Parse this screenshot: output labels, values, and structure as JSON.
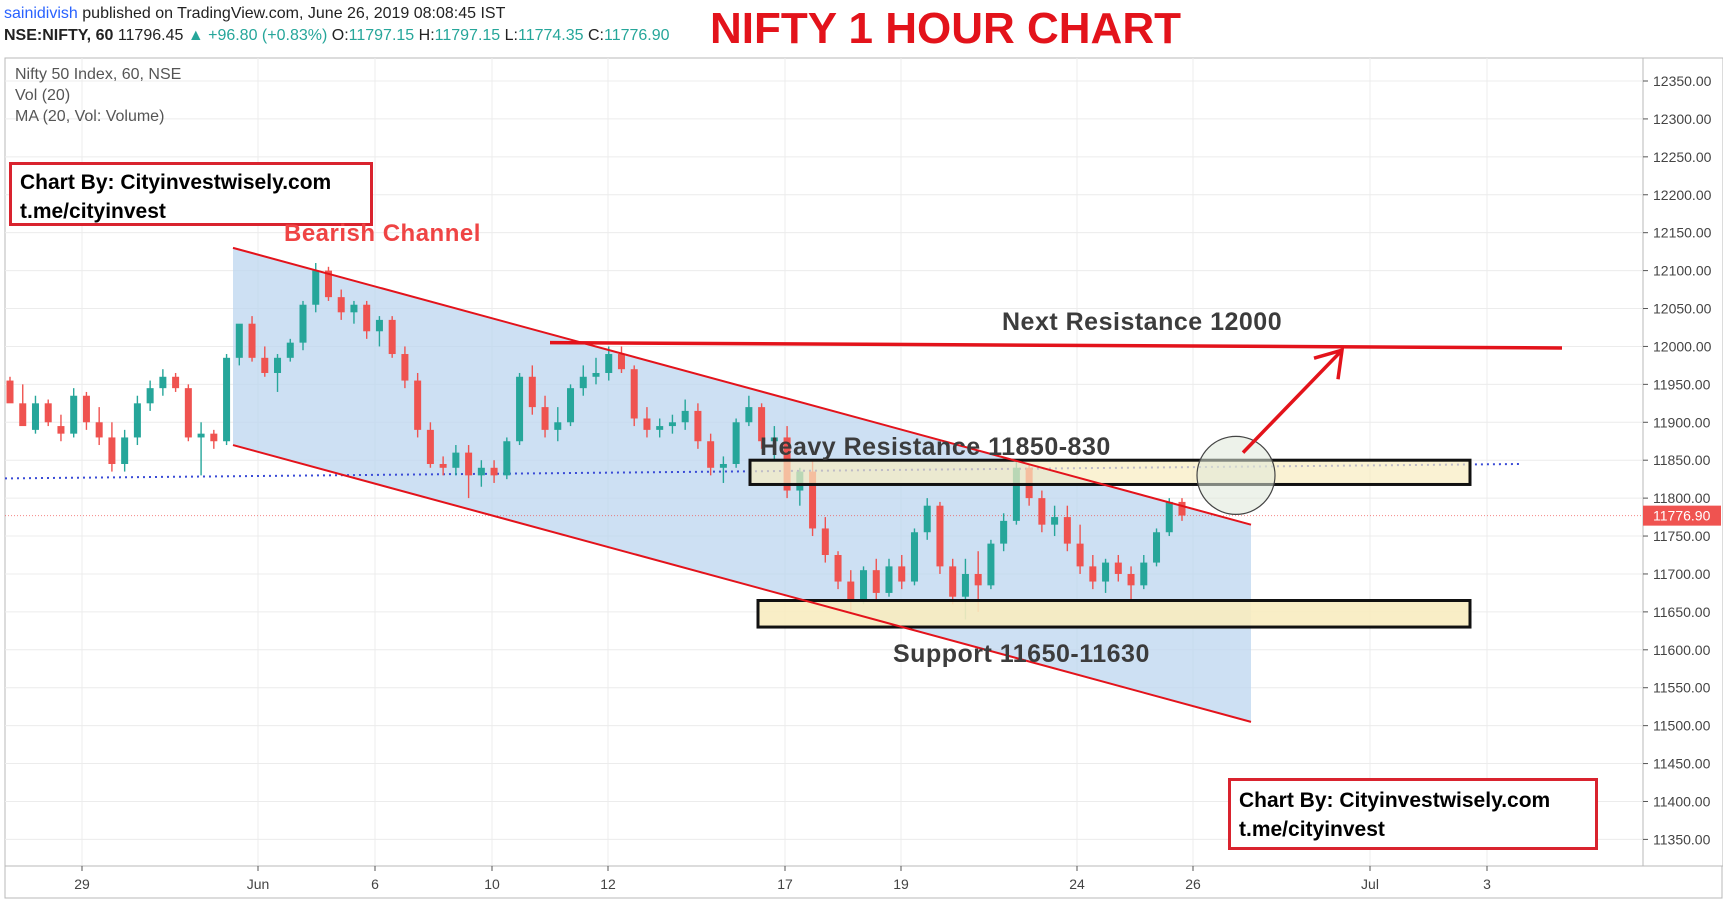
{
  "header": {
    "user": "sainidivish",
    "published": "published on TradingView.com, June 26, 2019 08:08:45 IST",
    "symbol": "NSE:NIFTY, 60",
    "last": "11796.45",
    "change": "▲ +96.80 (+0.83%)",
    "o_label": "O:",
    "o_value": "11797.15",
    "h_label": "H:",
    "h_value": "11797.15",
    "l_label": "L:",
    "l_value": "11774.35",
    "c_label": "C:",
    "c_value": "11776.90"
  },
  "big_title": "NIFTY 1 HOUR CHART",
  "legend": {
    "series": "Nifty 50 Index, 60, NSE",
    "vol": "Vol (20)",
    "ma": "MA (20, Vol: Volume)"
  },
  "credit": {
    "line1": "Chart By: Cityinvestwisely.com",
    "line2": "t.me/cityinvest"
  },
  "annotations": {
    "channel": "Bearish Channel",
    "next_resistance": "Next Resistance 12000",
    "heavy_resistance": "Heavy Resistance 11850-830",
    "support": "Support 11650-11630"
  },
  "colors": {
    "up": "#26a69a",
    "down": "#ef5350",
    "channel_line": "#e3131b",
    "channel_fill": "#bcd6ef",
    "zone_fill": "#f8ecc0",
    "price_tag": "#ef5350",
    "accent_red": "#e3131b"
  },
  "chart_data": {
    "type": "candlestick",
    "y_axis": {
      "ticks": [
        11350,
        11400,
        11450,
        11500,
        11550,
        11600,
        11650,
        11700,
        11750,
        11800,
        11850,
        11900,
        11950,
        12000,
        12050,
        12100,
        12150,
        12200,
        12250,
        12300,
        12350
      ],
      "tick_format": "2dp",
      "range": [
        11330,
        12380
      ]
    },
    "x_axis": {
      "labels": [
        "29",
        "Jun",
        "6",
        "10",
        "12",
        "17",
        "19",
        "24",
        "26",
        "Jul",
        "3"
      ]
    },
    "last_price": 11776.9,
    "last_price_label": "11776.90",
    "channel": {
      "upper_start": 12130,
      "upper_end": 11765,
      "lower_start": 11870,
      "lower_end": 11505
    },
    "resistance_line": 12000,
    "heavy_resistance_zone": [
      11818,
      11850
    ],
    "support_zone": [
      11630,
      11665
    ],
    "candles": [
      [
        11955,
        11960,
        11935,
        11925
      ],
      [
        11925,
        11950,
        11900,
        11895
      ],
      [
        11890,
        11935,
        11885,
        11925
      ],
      [
        11925,
        11930,
        11895,
        11900
      ],
      [
        11895,
        11910,
        11875,
        11885
      ],
      [
        11885,
        11945,
        11880,
        11935
      ],
      [
        11935,
        11940,
        11890,
        11900
      ],
      [
        11900,
        11920,
        11870,
        11880
      ],
      [
        11880,
        11900,
        11835,
        11845
      ],
      [
        11845,
        11890,
        11835,
        11880
      ],
      [
        11880,
        11935,
        11870,
        11925
      ],
      [
        11925,
        11955,
        11915,
        11945
      ],
      [
        11945,
        11970,
        11935,
        11960
      ],
      [
        11960,
        11965,
        11940,
        11945
      ],
      [
        11945,
        11950,
        11875,
        11880
      ],
      [
        11880,
        11900,
        11830,
        11885
      ],
      [
        11885,
        11890,
        11865,
        11875
      ],
      [
        11875,
        11990,
        11870,
        11985
      ],
      [
        11985,
        12020,
        11975,
        12030
      ],
      [
        12030,
        12040,
        11980,
        11985
      ],
      [
        11985,
        12000,
        11960,
        11965
      ],
      [
        11965,
        11990,
        11940,
        11985
      ],
      [
        11985,
        12010,
        11980,
        12005
      ],
      [
        12005,
        12060,
        11995,
        12055
      ],
      [
        12055,
        12110,
        12045,
        12100
      ],
      [
        12100,
        12105,
        12060,
        12065
      ],
      [
        12065,
        12075,
        12035,
        12045
      ],
      [
        12045,
        12060,
        12030,
        12055
      ],
      [
        12055,
        12060,
        12010,
        12020
      ],
      [
        12020,
        12040,
        12000,
        12035
      ],
      [
        12035,
        12040,
        11985,
        11990
      ],
      [
        11990,
        12000,
        11945,
        11955
      ],
      [
        11955,
        11965,
        11880,
        11890
      ],
      [
        11890,
        11900,
        11840,
        11845
      ],
      [
        11845,
        11855,
        11830,
        11840
      ],
      [
        11840,
        11870,
        11830,
        11860
      ],
      [
        11860,
        11870,
        11800,
        11830
      ],
      [
        11830,
        11850,
        11815,
        11840
      ],
      [
        11840,
        11850,
        11820,
        11830
      ],
      [
        11830,
        11880,
        11825,
        11875
      ],
      [
        11875,
        11965,
        11870,
        11960
      ],
      [
        11960,
        11975,
        11910,
        11920
      ],
      [
        11920,
        11935,
        11880,
        11890
      ],
      [
        11890,
        11920,
        11875,
        11900
      ],
      [
        11900,
        11950,
        11895,
        11945
      ],
      [
        11945,
        11975,
        11935,
        11960
      ],
      [
        11960,
        11985,
        11950,
        11965
      ],
      [
        11965,
        12000,
        11955,
        11990
      ],
      [
        11990,
        12000,
        11965,
        11970
      ],
      [
        11970,
        11975,
        11895,
        11905
      ],
      [
        11905,
        11920,
        11880,
        11890
      ],
      [
        11890,
        11905,
        11880,
        11895
      ],
      [
        11895,
        11910,
        11885,
        11900
      ],
      [
        11900,
        11930,
        11890,
        11915
      ],
      [
        11915,
        11925,
        11865,
        11875
      ],
      [
        11875,
        11885,
        11830,
        11840
      ],
      [
        11840,
        11855,
        11820,
        11845
      ],
      [
        11845,
        11905,
        11840,
        11900
      ],
      [
        11900,
        11935,
        11895,
        11920
      ],
      [
        11920,
        11925,
        11865,
        11875
      ],
      [
        11875,
        11895,
        11850,
        11880
      ],
      [
        11880,
        11895,
        11800,
        11810
      ],
      [
        11810,
        11840,
        11790,
        11835
      ],
      [
        11835,
        11850,
        11750,
        11760
      ],
      [
        11760,
        11775,
        11715,
        11725
      ],
      [
        11725,
        11730,
        11680,
        11690
      ],
      [
        11690,
        11705,
        11650,
        11665
      ],
      [
        11665,
        11710,
        11660,
        11705
      ],
      [
        11705,
        11720,
        11665,
        11675
      ],
      [
        11675,
        11720,
        11670,
        11710
      ],
      [
        11710,
        11725,
        11680,
        11690
      ],
      [
        11690,
        11760,
        11685,
        11755
      ],
      [
        11755,
        11800,
        11745,
        11790
      ],
      [
        11790,
        11795,
        11700,
        11710
      ],
      [
        11710,
        11720,
        11660,
        11670
      ],
      [
        11670,
        11720,
        11640,
        11700
      ],
      [
        11700,
        11730,
        11650,
        11685
      ],
      [
        11685,
        11745,
        11680,
        11740
      ],
      [
        11740,
        11780,
        11730,
        11770
      ],
      [
        11770,
        11850,
        11765,
        11840
      ],
      [
        11840,
        11845,
        11790,
        11800
      ],
      [
        11800,
        11810,
        11755,
        11765
      ],
      [
        11765,
        11790,
        11750,
        11775
      ],
      [
        11775,
        11790,
        11730,
        11740
      ],
      [
        11740,
        11765,
        11700,
        11710
      ],
      [
        11710,
        11725,
        11680,
        11690
      ],
      [
        11690,
        11720,
        11675,
        11715
      ],
      [
        11715,
        11725,
        11690,
        11700
      ],
      [
        11700,
        11710,
        11665,
        11685
      ],
      [
        11685,
        11725,
        11680,
        11715
      ],
      [
        11715,
        11760,
        11710,
        11755
      ],
      [
        11755,
        11800,
        11750,
        11795
      ],
      [
        11795,
        11800,
        11770,
        11777
      ]
    ]
  }
}
